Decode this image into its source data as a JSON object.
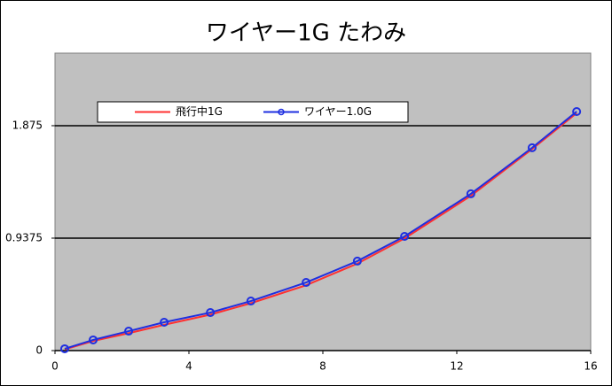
{
  "chart_data": {
    "type": "line",
    "title": "ワイヤー1G たわみ",
    "x": [
      0.29,
      1.14,
      2.2,
      3.26,
      4.64,
      5.85,
      7.5,
      9.03,
      10.44,
      12.42,
      14.25,
      15.58
    ],
    "series": [
      {
        "name": "飛行中1G",
        "color": "#ff3030",
        "marker": false,
        "values": [
          0.01,
          0.08,
          0.145,
          0.215,
          0.3,
          0.395,
          0.545,
          0.725,
          0.935,
          1.29,
          1.68,
          1.98
        ]
      },
      {
        "name": "ワイヤー1.0G",
        "color": "#1f2fe0",
        "marker": true,
        "values": [
          0.015,
          0.089,
          0.162,
          0.236,
          0.317,
          0.413,
          0.568,
          0.746,
          0.952,
          1.307,
          1.691,
          1.993
        ]
      }
    ],
    "xlim": [
      0,
      16
    ],
    "xticks": [
      0,
      4,
      8,
      12,
      16
    ],
    "ylim": [
      0,
      2.48
    ],
    "yticks": [
      0,
      0.9375,
      1.875
    ],
    "grid": true,
    "plot_background": "#c0c0c0"
  }
}
